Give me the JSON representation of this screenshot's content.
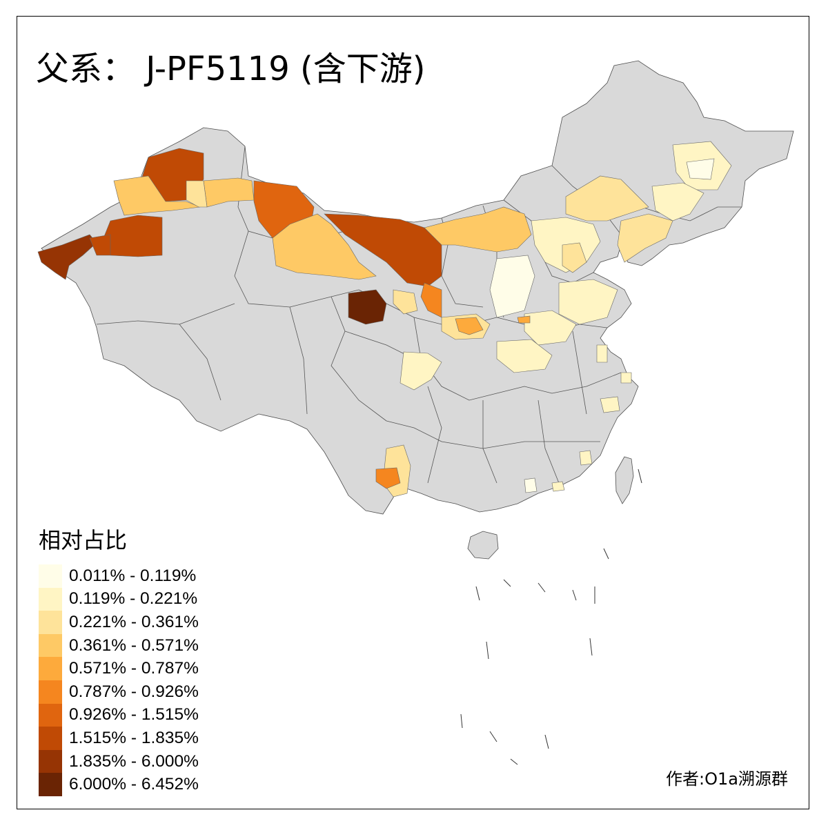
{
  "title": "父系： J-PF5119 (含下游)",
  "legend": {
    "title": "相对占比",
    "items": [
      {
        "label": "0.011% - 0.119%",
        "color": "#fffde8"
      },
      {
        "label": "0.119% - 0.221%",
        "color": "#fff5c4"
      },
      {
        "label": "0.221% - 0.361%",
        "color": "#fee39a"
      },
      {
        "label": "0.361% - 0.571%",
        "color": "#fec965"
      },
      {
        "label": "0.571% - 0.787%",
        "color": "#fdaa3c"
      },
      {
        "label": "0.787% - 0.926%",
        "color": "#f5861f"
      },
      {
        "label": "0.926% - 1.515%",
        "color": "#e0650f"
      },
      {
        "label": "1.515% - 1.835%",
        "color": "#c04a05"
      },
      {
        "label": "1.835% - 6.000%",
        "color": "#963404"
      },
      {
        "label": "6.000% - 6.452%",
        "color": "#6a2404"
      }
    ]
  },
  "author": "作者:O1a溯源群",
  "colors": {
    "land": "#d9d9d9",
    "border": "#4d4d4d"
  }
}
